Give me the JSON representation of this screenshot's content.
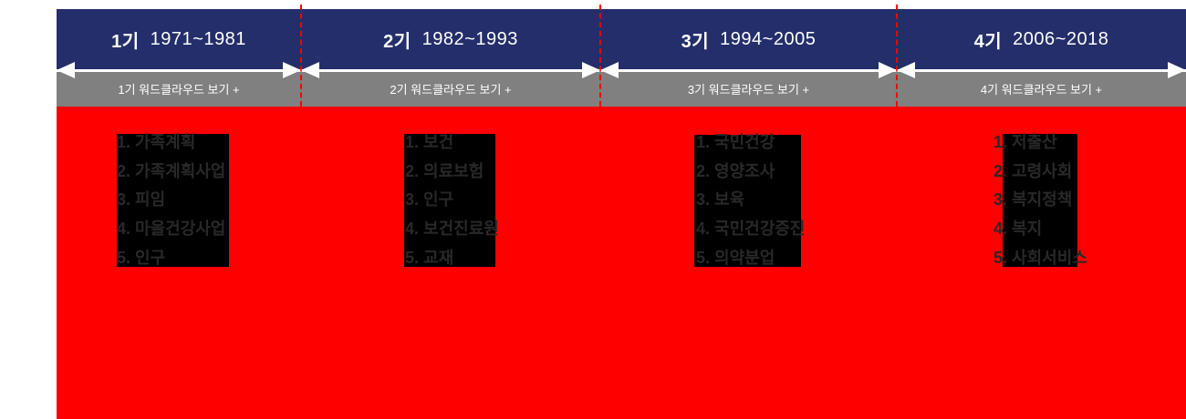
{
  "widget": {
    "type": "timeline-wordcloud-navigator"
  },
  "colors": {
    "header_navy": "#242e6a",
    "button_gray": "#808080",
    "panel_red": "#ff0000",
    "divider_dashed_red": "#ff0000",
    "keyword_block_black": "#000000",
    "keyword_text": "#282828",
    "arrow_white": "#ffffff"
  },
  "periods": [
    {
      "label": "1기",
      "years": "1971~1981",
      "button": "1기 워드클라우드 보기 +",
      "keywords": [
        "1. 가족계획",
        "2. 가족계획사업",
        "3. 피임",
        "4. 마을건강사업",
        "5. 인구"
      ]
    },
    {
      "label": "2기",
      "years": "1982~1993",
      "button": "2기 워드클라우드 보기 +",
      "keywords": [
        "1. 보건",
        "2. 의료보험",
        "3. 인구",
        "4. 보건진료원",
        "5. 교재"
      ]
    },
    {
      "label": "3기",
      "years": "1994~2005",
      "button": "3기 워드클라우드 보기 +",
      "keywords": [
        "1. 국민건강",
        "2. 영양조사",
        "3. 보육",
        "4. 국민건강증진",
        "5. 의약분업"
      ]
    },
    {
      "label": "4기",
      "years": "2006~2018",
      "button": "4기 워드클라우드 보기 +",
      "keywords": [
        "1. 저출산",
        "2. 고령사회",
        "3. 복지정책",
        "4. 복지",
        "5. 사회서비스"
      ]
    }
  ]
}
